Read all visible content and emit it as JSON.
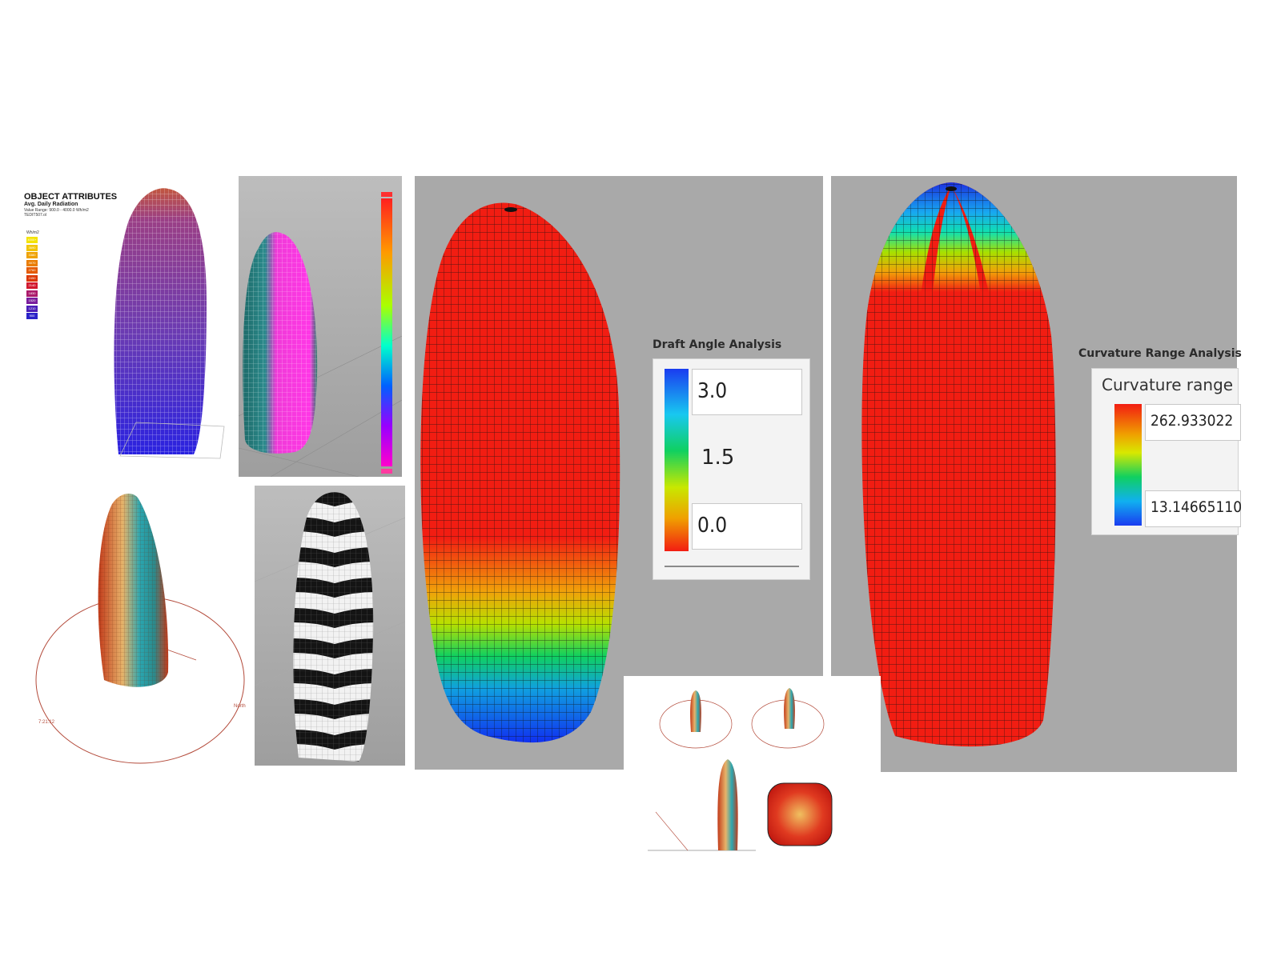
{
  "object_attributes": {
    "title": "OBJECT ATTRIBUTES",
    "subtitle": "Avg. Daily Radiation",
    "range": "Value Range: 900.0 - 4000.0 Wh/m2",
    "extra": "TEDIT507.ol",
    "unit": "Wh/m2",
    "legend": [
      {
        "label": "4000+",
        "color": "#f4e300"
      },
      {
        "label": "3690",
        "color": "#f2c500"
      },
      {
        "label": "3380",
        "color": "#efa200"
      },
      {
        "label": "3070",
        "color": "#ea7d00"
      },
      {
        "label": "2760",
        "color": "#e45a00"
      },
      {
        "label": "2450",
        "color": "#dc3600"
      },
      {
        "label": "2140",
        "color": "#d2182e"
      },
      {
        "label": "1830",
        "color": "#ab1a6a"
      },
      {
        "label": "1520",
        "color": "#7a1d9c"
      },
      {
        "label": "1210",
        "color": "#4c1fb8"
      },
      {
        "label": "900",
        "color": "#2a22c9"
      }
    ]
  },
  "sun_path_panel": {
    "left_label": "7:21:12",
    "right_label": "North"
  },
  "draft_angle": {
    "title": "Draft Angle Analysis",
    "max": "3.0",
    "mid": "1.5",
    "min": "0.0"
  },
  "curvature": {
    "title": "Curvature Range Analysis",
    "header": "Curvature range",
    "max": "262.933022",
    "min": "13.14665110"
  },
  "colors": {
    "panel_gray": "#a9a9a9",
    "surface_red": "#f21d12",
    "accent_blue": "#1a3cf0"
  }
}
